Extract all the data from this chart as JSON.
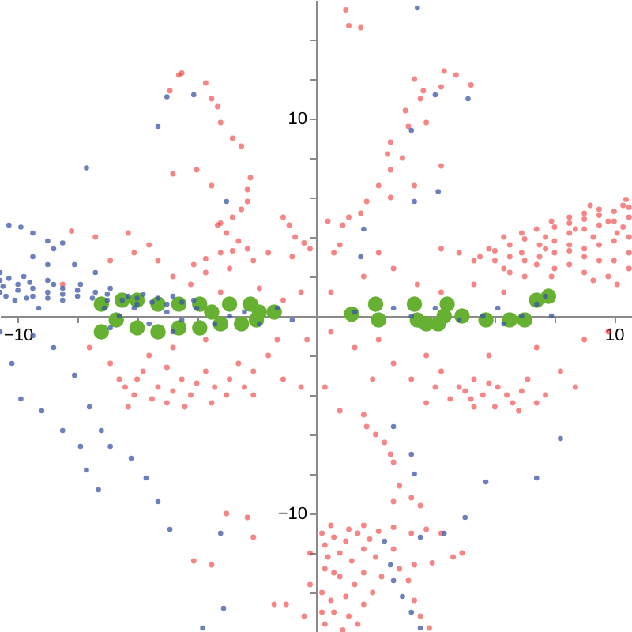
{
  "chart_data": {
    "type": "scatter",
    "marker": "circle",
    "xlim": [
      -10.6,
      10.6
    ],
    "ylim": [
      -16,
      16
    ],
    "xticks": [
      -10,
      {
        "value": -8,
        "label": null
      },
      {
        "value": -6,
        "label": null
      },
      {
        "value": -4,
        "label": null
      },
      {
        "value": -2,
        "label": null
      },
      {
        "value": 2,
        "label": null
      },
      {
        "value": 4,
        "label": null
      },
      {
        "value": 6,
        "label": null
      },
      {
        "value": 8,
        "label": null
      },
      10
    ],
    "yticks": [
      {
        "value": -14,
        "label": null
      },
      {
        "value": -12,
        "label": null
      },
      -10,
      {
        "value": -8,
        "label": null
      },
      {
        "value": -6,
        "label": null
      },
      {
        "value": -4,
        "label": null
      },
      {
        "value": -2,
        "label": null
      },
      {
        "value": 2,
        "label": null
      },
      {
        "value": 4,
        "label": null
      },
      {
        "value": 6,
        "label": null
      },
      {
        "value": 8,
        "label": null
      },
      10,
      {
        "value": 12,
        "label": null
      },
      {
        "value": 14,
        "label": null
      }
    ],
    "series": [
      {
        "color": "#ee2222",
        "x": [
          -2.2,
          -2.3,
          -2.3,
          -2.5,
          -2.8,
          -3.2,
          -3.3,
          -3.0,
          -2.6,
          -2.3,
          -2.8,
          -3.2,
          -3.7,
          -4.1,
          -1.1,
          -0.9,
          -0.7,
          -0.4,
          -0.2,
          -1.6,
          -0.8,
          -2.1,
          -2.9,
          -3.7,
          -4.6,
          -4.5,
          -4.9,
          -3.7,
          -3.5,
          -3.3,
          -3.2,
          -2.8,
          -2.5,
          -4.8,
          -4.0,
          -3.5,
          -8.2,
          -7.4,
          -6.3,
          -5.6,
          -6.1,
          -6.9,
          -5.3,
          -4.8,
          -8.5,
          -4.2,
          -3.2,
          -1.9,
          -1.1,
          -0.5,
          1.0,
          1.1,
          1.5,
          4.3,
          4.7,
          5.2,
          4.2,
          3.6,
          3.3,
          3.5,
          3.0,
          3.7,
          3.1,
          2.5,
          2.4,
          2.9,
          2.5,
          4.2,
          3.3,
          2.1,
          2.5,
          1.7,
          1.5,
          1.1,
          0.4,
          0.9,
          0.8,
          0.6,
          5.8,
          6.3,
          6.9,
          7.4,
          7.9,
          8.5,
          9.0,
          9.5,
          10.3,
          6.9,
          7.7,
          8.5,
          9.3,
          10.1,
          6.3,
          7.4,
          8.5,
          9.5,
          10.5,
          5.3,
          4.8,
          4.2,
          7.9,
          9.3,
          10.1,
          8.7,
          9.8,
          7.7,
          2.6,
          3.4,
          2.1,
          4.2,
          5.3,
          6.3,
          1.6,
          0.5,
          -7.6,
          -6.9,
          -6.6,
          -6.1,
          -5.8,
          -5.3,
          -5.0,
          -4.5,
          -4.2,
          -3.7,
          -3.4,
          -2.9,
          -2.6,
          -2.1,
          -1.6,
          -1.1,
          -0.5,
          -0.3,
          -1.3,
          -4.8,
          -3.7,
          -5.6,
          -2.1,
          -6.3,
          0.5,
          1.3,
          2.1,
          2.6,
          3.2,
          3.7,
          4.2,
          4.8,
          5.3,
          5.6,
          6.1,
          6.6,
          7.1,
          7.7,
          8.2,
          8.7,
          5.8,
          7.4,
          9.0,
          9.8,
          3.7,
          5.3,
          1.9,
          0.3,
          0.8,
          1.6,
          1.7,
          2.0,
          2.3,
          2.5,
          2.6,
          2.8,
          2.6,
          3.5,
          3.2,
          0.5,
          1.1,
          2.1,
          3.2,
          4.2,
          0.3,
          0.8,
          1.6,
          2.6,
          0.3,
          0.8,
          1.3,
          1.9,
          0.5,
          1.1,
          0.3,
          2.8,
          3.3,
          3.9,
          3.1,
          3.3,
          3.5,
          3.8,
          4.6,
          4.9,
          -3.0,
          -2.3,
          -4.1,
          -3.5,
          -1.4,
          -1.0,
          -0.4,
          -0.2,
          -0.2,
          -2.1,
          5.5,
          6.0,
          6.5,
          7.0,
          8.0,
          8.5,
          9.0,
          9.5,
          10.0,
          10.5,
          6.0,
          6.5,
          7.5,
          8.0,
          8.5,
          9.0,
          9.5,
          10.0,
          10.5,
          6.5,
          7.0,
          7.5,
          8.0,
          8.5,
          9.0,
          9.5,
          10.0,
          10.5,
          7.0,
          8.0,
          9.0,
          9.0,
          10.0,
          10.5,
          9.8,
          10.3,
          9.2,
          10.4,
          0.2,
          0.6,
          1.0,
          1.4,
          1.8,
          0.4,
          1.2,
          2.0,
          0.6,
          1.6,
          2.2,
          0.2,
          1.0,
          1.6,
          0.6,
          1.4,
          0.2,
          0.9,
          1.6,
          2.6,
          3.7,
          5.0,
          5.8,
          6.4,
          6.9,
          7.4,
          6.0,
          6.8,
          5.2,
          4.5,
          4.0,
          -6.4,
          -5.5,
          -4.8,
          -4.0,
          -3.0,
          -2.4,
          -5.0,
          -4.4,
          -3.5,
          -6.0
        ],
        "values": [
          7.0,
          6.4,
          5.8,
          5.4,
          5.0,
          4.7,
          4.6,
          4.2,
          3.8,
          3.4,
          3.3,
          3.2,
          2.9,
          2.6,
          5.0,
          4.6,
          4.0,
          3.7,
          3.4,
          3.2,
          3.0,
          2.8,
          2.4,
          2.2,
          12.2,
          12.3,
          11.4,
          11.8,
          11.0,
          10.6,
          9.8,
          9.0,
          8.6,
          7.2,
          7.4,
          6.6,
          4.3,
          4.0,
          4.2,
          3.6,
          3.2,
          2.8,
          2.8,
          2.0,
          1.6,
          1.6,
          1.2,
          1.4,
          0.8,
          1.2,
          15.5,
          14.7,
          14.6,
          12.4,
          12.2,
          11.7,
          11.6,
          11.4,
          12.0,
          11.0,
          10.4,
          9.8,
          9.6,
          8.8,
          8.2,
          8.0,
          7.4,
          7.6,
          6.6,
          6.6,
          6.0,
          5.8,
          5.2,
          5.0,
          4.8,
          4.6,
          3.6,
          3.2,
          3.4,
          4.0,
          4.2,
          4.4,
          4.8,
          5.0,
          5.2,
          5.4,
          5.6,
          3.2,
          3.4,
          3.6,
          4.0,
          4.2,
          2.4,
          2.6,
          2.6,
          2.8,
          2.4,
          2.8,
          3.2,
          3.4,
          2.0,
          1.8,
          1.6,
          4.4,
          4.8,
          4.0,
          2.4,
          1.6,
          3.2,
          1.2,
          1.6,
          1.2,
          2.0,
          1.2,
          -1.6,
          -2.4,
          -3.2,
          -4.0,
          -2.8,
          -3.6,
          -4.4,
          -3.2,
          -4.0,
          -2.8,
          -3.6,
          -3.2,
          -2.4,
          -2.8,
          -2.0,
          -3.2,
          -3.6,
          -1.2,
          -1.2,
          -1.6,
          -1.2,
          -2.0,
          -4.0,
          -4.6,
          -0.8,
          -1.6,
          -1.2,
          -2.4,
          -3.2,
          -2.0,
          -2.8,
          -3.6,
          -3.2,
          -4.0,
          -3.6,
          -4.4,
          -3.2,
          -4.0,
          -2.8,
          -3.6,
          -2.0,
          -1.6,
          -1.2,
          -0.8,
          -4.4,
          -4.6,
          -3.2,
          -3.6,
          -4.8,
          -5.0,
          -5.6,
          -6.0,
          -6.4,
          -7.0,
          -7.4,
          -8.6,
          -9.4,
          -9.6,
          -9.2,
          -10.6,
          -10.8,
          -10.9,
          -11.0,
          -11.0,
          -11.6,
          -12.0,
          -11.8,
          -11.8,
          -12.8,
          -13.2,
          -13.6,
          -14.0,
          -14.4,
          -15.2,
          -15.6,
          -12.8,
          -12.6,
          -12.5,
          -13.4,
          -14.4,
          -15.2,
          -15.8,
          -12.2,
          -12.0,
          -10.0,
          -10.2,
          -12.4,
          -12.6,
          -14.6,
          -14.6,
          -15.2,
          -12.0,
          -13.6,
          -11.2,
          3.0,
          3.3,
          3.6,
          3.9,
          4.5,
          4.7,
          4.9,
          5.1,
          5.3,
          5.5,
          2.8,
          3.0,
          3.6,
          3.8,
          4.2,
          4.4,
          4.6,
          4.8,
          5.0,
          2.2,
          2.8,
          3.0,
          3.2,
          3.3,
          3.4,
          3.6,
          3.8,
          4.0,
          2.0,
          2.4,
          2.2,
          3.0,
          2.8,
          3.2,
          2.0,
          4.5,
          5.6,
          5.9,
          -11.0,
          -11.2,
          -11.4,
          -11.0,
          -11.3,
          -12.2,
          -12.4,
          -12.2,
          -13.0,
          -13.0,
          -13.2,
          -14.0,
          -14.2,
          -14.6,
          -15.0,
          -15.6,
          -15.0,
          -15.9,
          -10.6,
          -10.7,
          -10.8,
          -3.8,
          -3.4,
          -4.0,
          -3.8,
          -4.4,
          -4.6,
          -4.8,
          -4.2,
          -4.2,
          -3.6,
          -3.6,
          -4.2,
          -3.8,
          -3.4,
          -4.0,
          -3.6,
          -2.6,
          -4.6,
          -4.4,
          -3.2
        ]
      },
      {
        "color": "#66b032",
        "x": [
          -7.2,
          -6.5,
          -7.2,
          -6.0,
          -5.3,
          -4.6,
          -3.9,
          -6.0,
          -5.3,
          -4.6,
          -3.9,
          -3.2,
          -2.5,
          -2.0,
          -2.9,
          -2.2,
          -1.9,
          -1.4,
          -6.7,
          -3.5,
          1.2,
          2.0,
          2.1,
          3.3,
          3.4,
          4.4,
          4.3,
          4.1,
          4.9,
          5.7,
          6.5,
          7.0,
          7.4,
          7.8,
          3.7
        ],
        "values": [
          0.6,
          0.8,
          -0.8,
          0.8,
          0.6,
          0.6,
          0.6,
          -0.6,
          -0.8,
          -0.6,
          -0.6,
          -0.4,
          -0.4,
          -0.2,
          0.6,
          0.6,
          0.2,
          0.2,
          -0.2,
          0.2,
          0.1,
          0.6,
          -0.2,
          0.6,
          -0.2,
          0.6,
          0.0,
          -0.4,
          0.0,
          -0.2,
          -0.2,
          -0.2,
          0.8,
          1.0,
          -0.4
        ]
      },
      {
        "color": "#3a56a5",
        "x": [
          -10.3,
          -9.9,
          -9.5,
          -9.0,
          -8.5,
          -8.8,
          -9.5,
          -9.0,
          -8.1,
          -7.4,
          -10.6,
          -10.6,
          -10.6,
          -9.8,
          -9.5,
          -9.0,
          -8.5,
          -7.9,
          -7.4,
          -6.9,
          -6.3,
          -5.8,
          -5.3,
          -4.8,
          -4.1,
          -10.1,
          -8.5,
          -9.3,
          -10.0,
          -9.0,
          -8.0,
          -7.0,
          -6.0,
          -5.0,
          -10.4,
          -9.7,
          -7.1,
          -6.6,
          -6.1,
          -5.6,
          -5.0,
          -4.5,
          -4.0,
          -3.4,
          -2.9,
          -2.4,
          -1.9,
          -1.3,
          -0.8,
          -6.9,
          -4.8,
          1.3,
          2.6,
          3.2,
          4.0,
          4.8,
          5.6,
          6.3,
          6.9,
          7.4,
          7.7,
          7.9,
          6.1,
          -5.3,
          -7.7,
          -5.0,
          -4.1,
          -3.0,
          4.0,
          3.4,
          5.1,
          1.6,
          1.5,
          3.3,
          4.1,
          3.2,
          -10.6,
          -10.2,
          -9.9,
          -9.2,
          -8.5,
          -7.9,
          -7.7,
          -7.3,
          -9.5,
          -8.8,
          -8.1,
          -7.6,
          -7.2,
          -6.9,
          -6.2,
          -5.7,
          -5.3,
          -4.9,
          2.6,
          8.2,
          7.4,
          5.7,
          5.0,
          3.2,
          3.3,
          2.3,
          3.5,
          4.3,
          2.5,
          2.6,
          2.9,
          3.2,
          3.5,
          -3.2,
          -3.1,
          -3.8,
          -10.5,
          -10.0,
          -9.5,
          -9.0,
          -8.5,
          -8.0,
          -7.5,
          -7.0,
          -6.5,
          -6.0,
          -5.5,
          -4.5,
          -10.3,
          -9.6,
          -8.8
        ],
        "values": [
          4.6,
          4.5,
          4.2,
          3.8,
          3.7,
          3.4,
          3.0,
          2.6,
          2.6,
          2.2,
          2.2,
          1.8,
          1.2,
          2.0,
          1.4,
          1.8,
          1.4,
          1.6,
          1.2,
          1.4,
          1.0,
          1.1,
          0.9,
          1.0,
          0.8,
          0.8,
          0.8,
          0.4,
          1.6,
          1.2,
          1.0,
          0.8,
          0.6,
          0.6,
          1.0,
          0.9,
          0.4,
          0.0,
          0.4,
          -0.4,
          0.2,
          -0.2,
          0.4,
          -0.4,
          0.0,
          0.2,
          -0.4,
          0.4,
          -0.2,
          -0.6,
          -0.8,
          0.2,
          0.4,
          0.0,
          0.4,
          -0.2,
          0.0,
          -0.4,
          0.0,
          0.6,
          1.0,
          0.0,
          0.4,
          9.6,
          7.5,
          11.1,
          11.2,
          5.8,
          11.2,
          15.6,
          11.0,
          4.4,
          3.0,
          5.8,
          6.3,
          9.4,
          -0.8,
          -2.4,
          -4.2,
          -4.8,
          -5.8,
          -6.6,
          -7.8,
          -8.8,
          -1.0,
          -1.6,
          -3.0,
          -4.6,
          -5.8,
          -6.6,
          -7.2,
          -8.2,
          -9.4,
          -10.8,
          -5.6,
          -6.2,
          -8.2,
          -8.4,
          -10.2,
          -7.0,
          -8.0,
          -11.4,
          -11.2,
          -11.0,
          -12.6,
          -13.4,
          -14.2,
          -15.0,
          -15.8,
          -11.0,
          -14.8,
          -15.8,
          1.5,
          1.3,
          1.0,
          0.9,
          1.1,
          1.3,
          0.9,
          1.1,
          0.8,
          0.9,
          0.7,
          0.7,
          1.9,
          1.7,
          1.6
        ]
      }
    ]
  }
}
